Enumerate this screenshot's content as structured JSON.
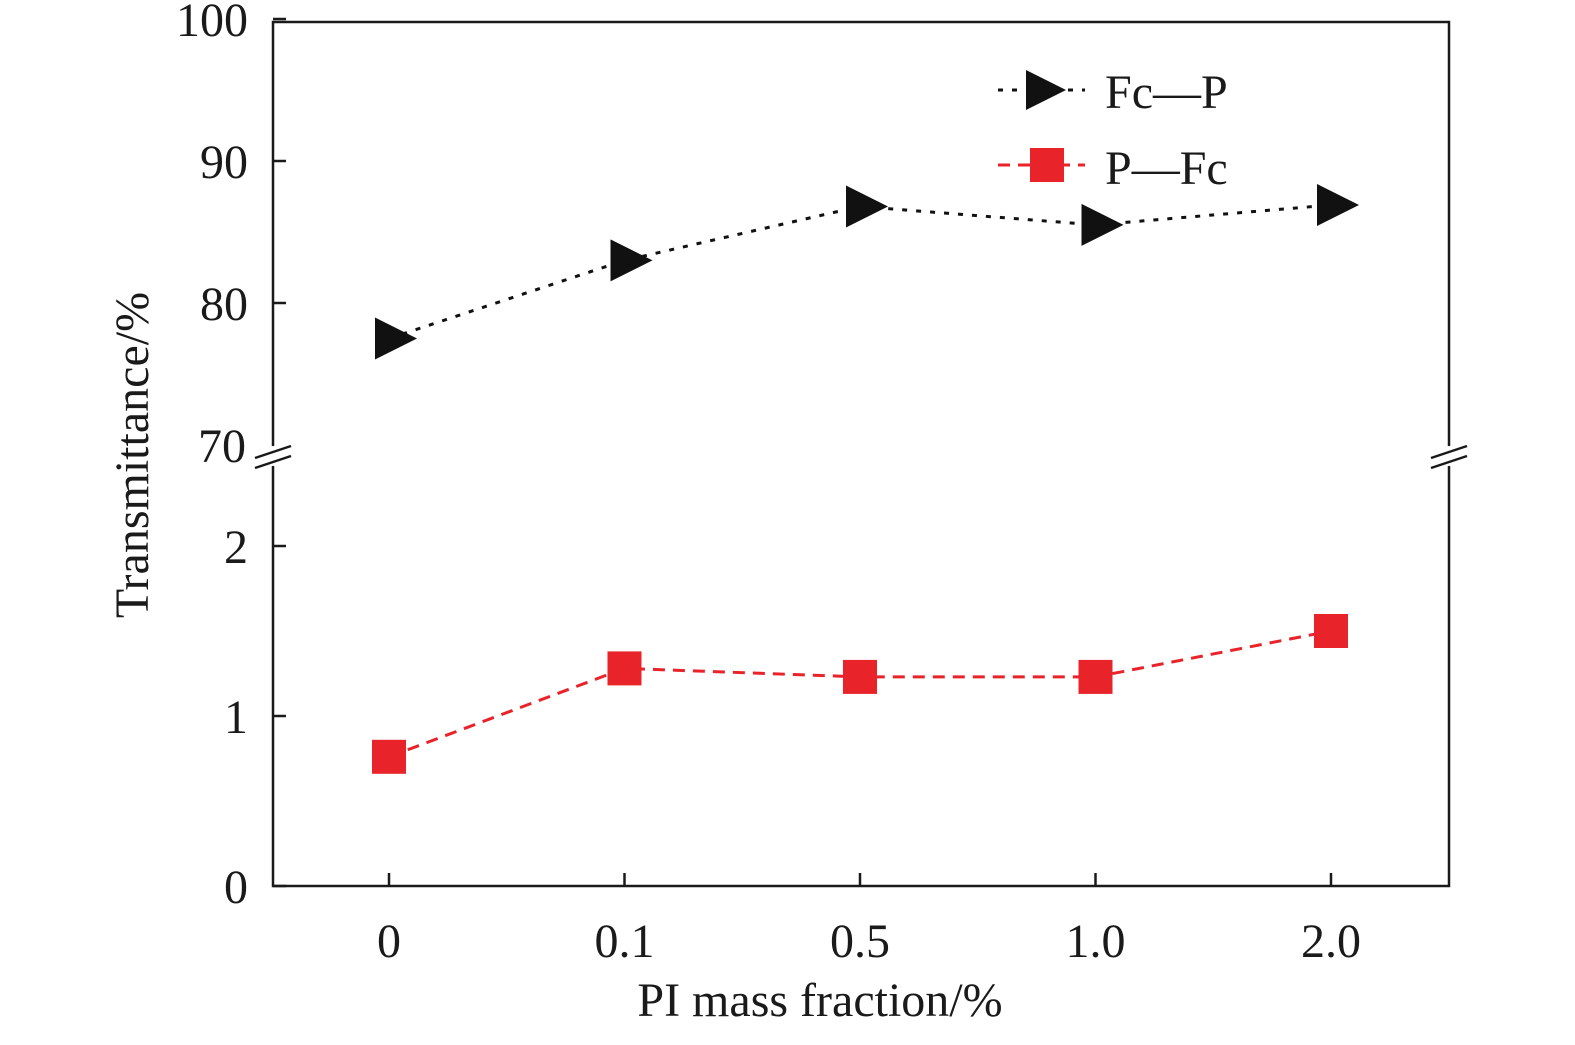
{
  "chart_data": {
    "type": "line",
    "xlabel": "PI mass fraction/%",
    "ylabel": "Transmittance/%",
    "categories": [
      "0",
      "0.1",
      "0.5",
      "1.0",
      "2.0"
    ],
    "y_axis_break": {
      "lower_range": [
        0,
        2.5
      ],
      "upper_range": [
        70,
        100
      ],
      "lower_ticks": [
        "0",
        "1",
        "2"
      ],
      "upper_ticks": [
        "70",
        "80",
        "90",
        "100"
      ]
    },
    "series": [
      {
        "name": "Fc—P",
        "marker": "triangle-right",
        "color": "#111111",
        "line_style": "dotted",
        "values": [
          77.5,
          83.0,
          86.8,
          85.5,
          86.9
        ]
      },
      {
        "name": "P—Fc",
        "marker": "square",
        "color": "#e8232a",
        "line_style": "dashed",
        "values": [
          0.76,
          1.28,
          1.23,
          1.23,
          1.5
        ]
      }
    ],
    "legend_position": "top-right",
    "grid": false
  }
}
